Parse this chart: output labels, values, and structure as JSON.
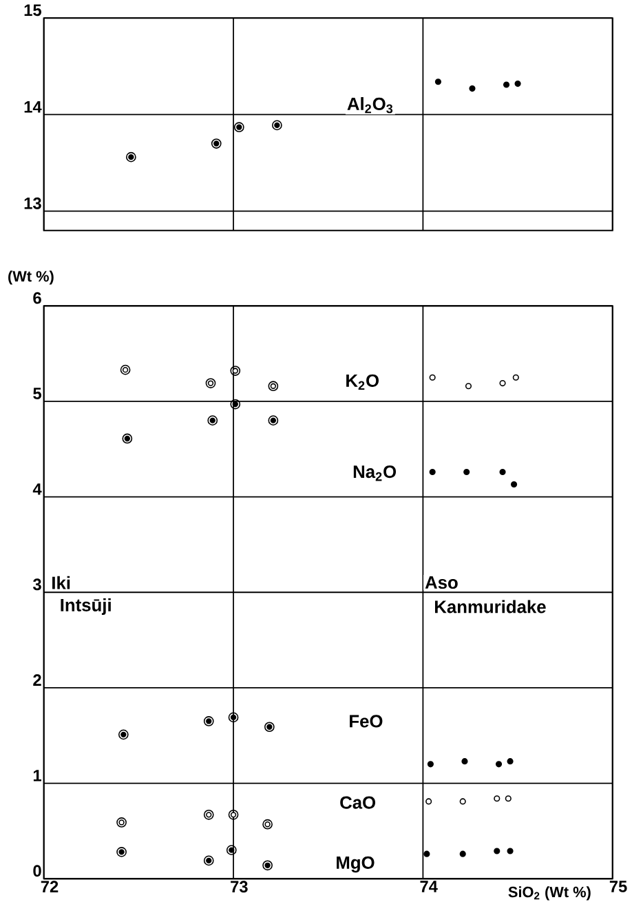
{
  "chart_data": [
    {
      "type": "scatter",
      "xlim": [
        72,
        75
      ],
      "xticks": [
        72,
        73,
        74,
        75
      ],
      "ylim": [
        12.8,
        15
      ],
      "yticks": [
        13,
        14,
        15
      ],
      "grid": true,
      "tick_labels": "y",
      "annotations": [
        "Al$_{2}$O$_{3}$"
      ],
      "series": [
        {
          "marker": "ringed circle",
          "color": "#000000",
          "x": [
            72.46,
            72.91,
            73.03,
            73.23
          ],
          "values": [
            13.56,
            13.7,
            13.87,
            13.89
          ]
        },
        {
          "marker": "circle",
          "color": "#000000",
          "x": [
            74.08,
            74.26,
            74.44,
            74.5
          ],
          "values": [
            14.34,
            14.27,
            14.31,
            14.32
          ]
        }
      ]
    },
    {
      "type": "scatter",
      "xlim": [
        72,
        75
      ],
      "xticks": [
        72,
        73,
        74,
        75
      ],
      "ylim": [
        0,
        6
      ],
      "yticks": [
        0,
        1,
        2,
        3,
        4,
        5,
        6
      ],
      "grid": true,
      "ylabel": "(Wt %)",
      "xlabel": "SiO$_{2}$ (Wt %)",
      "annotations": [
        "K$_{2}$O",
        "Na$_{2}$O",
        "FeO",
        "CaO",
        "MgO",
        "Iki",
        "Intsūji",
        "Aso",
        "Kanmuridake"
      ],
      "series": [
        {
          "marker": "ringed circle",
          "color": "#000000",
          "x": [
            72.44,
            72.89,
            73.01,
            73.21,
            72.42,
            72.87,
            73.0,
            73.19,
            72.41,
            72.87,
            72.99,
            73.18
          ],
          "values": [
            4.61,
            4.8,
            4.97,
            4.8,
            1.51,
            1.65,
            1.69,
            1.59,
            0.28,
            0.19,
            0.3,
            0.14
          ]
        },
        {
          "marker": "ringed circle",
          "color": "#ffffff",
          "x": [
            72.43,
            72.88,
            73.01,
            73.21,
            72.41,
            72.87,
            73.0,
            73.18
          ],
          "values": [
            5.33,
            5.19,
            5.32,
            5.16,
            0.59,
            0.67,
            0.67,
            0.57
          ]
        },
        {
          "marker": "circle",
          "color": "#000000",
          "x": [
            74.05,
            74.23,
            74.42,
            74.48,
            74.04,
            74.22,
            74.4,
            74.46,
            74.02,
            74.21,
            74.39,
            74.46
          ],
          "values": [
            4.26,
            4.26,
            4.26,
            4.13,
            1.2,
            1.23,
            1.2,
            1.23,
            0.26,
            0.26,
            0.29,
            0.29
          ]
        },
        {
          "marker": "circle",
          "color": "#ffffff",
          "x": [
            74.05,
            74.24,
            74.42,
            74.49,
            74.03,
            74.21,
            74.39,
            74.45
          ],
          "values": [
            5.25,
            5.16,
            5.19,
            5.25,
            0.81,
            0.81,
            0.84,
            0.84
          ]
        }
      ]
    }
  ]
}
